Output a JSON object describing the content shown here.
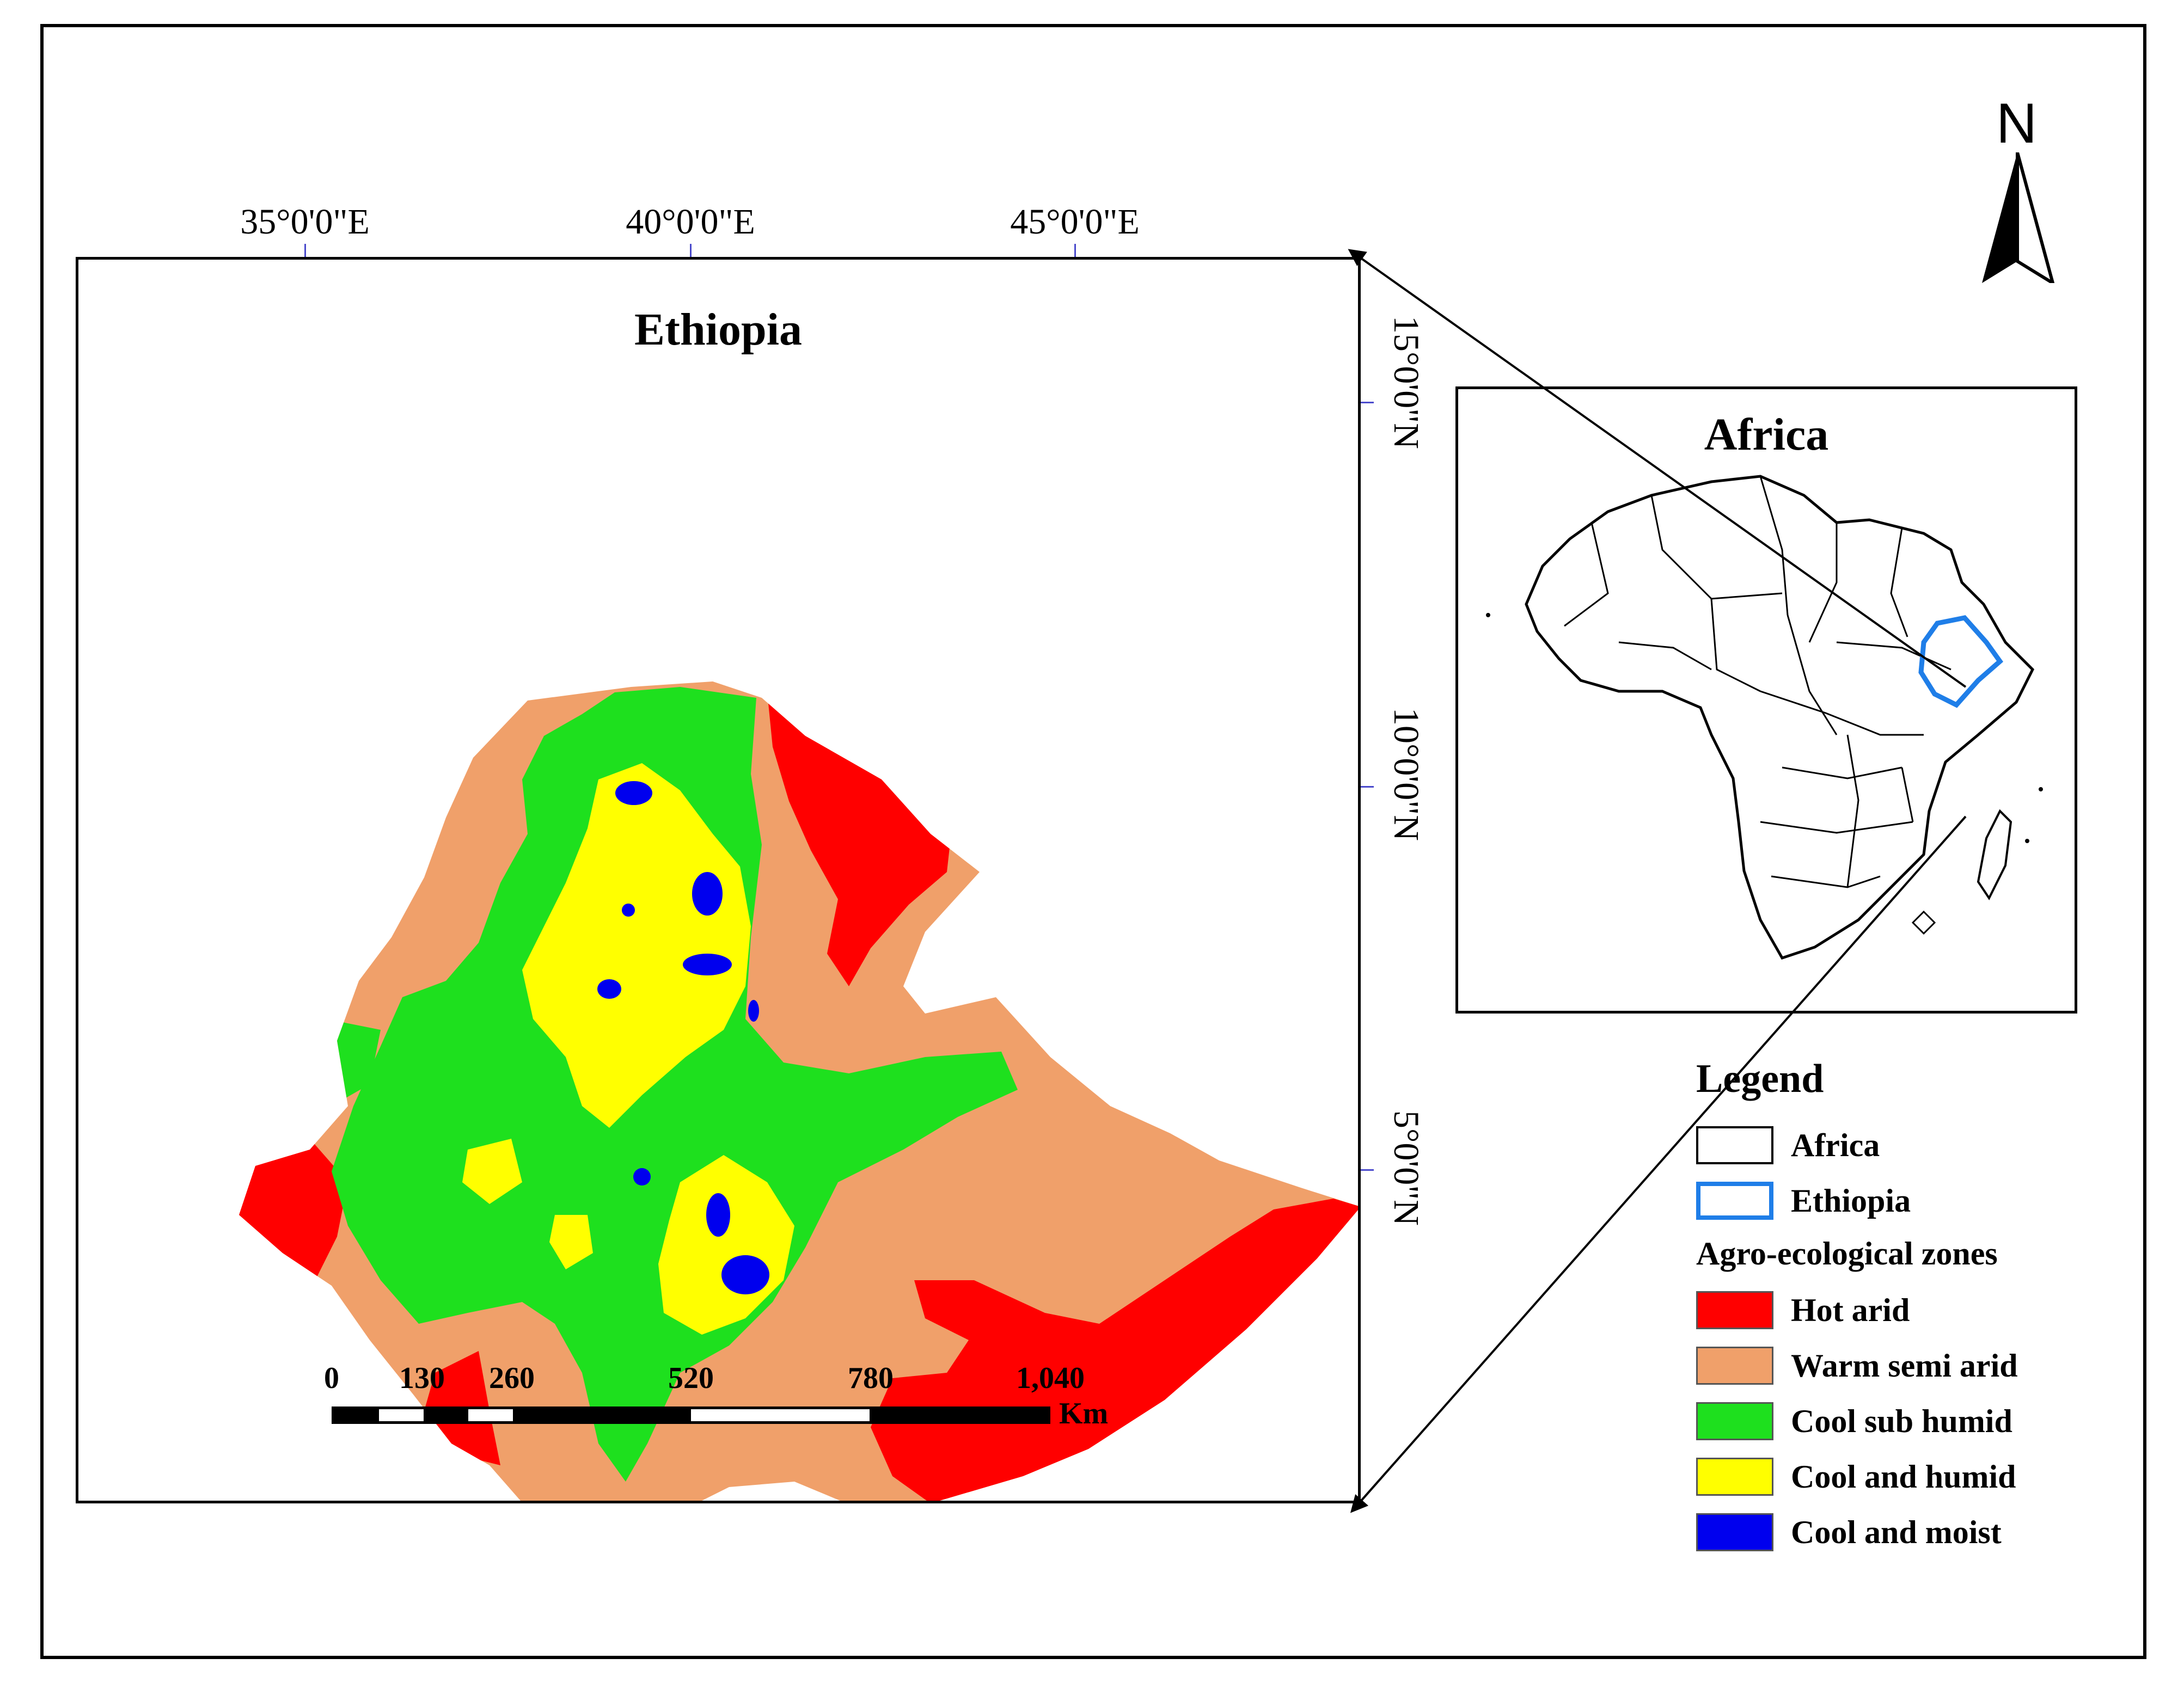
{
  "main_map": {
    "title": "Ethiopia",
    "longitude_labels": [
      "35°0'0\"E",
      "40°0'0\"E",
      "45°0'0\"E"
    ],
    "latitude_labels": [
      "15°0'0\"N",
      "10°0'0\"N",
      "5°0'0\"N"
    ]
  },
  "inset": {
    "title": "Africa"
  },
  "north_arrow": {
    "label": "N"
  },
  "scale_bar": {
    "ticks": [
      "0",
      "130",
      "260",
      "520",
      "780",
      "1,040"
    ],
    "unit": "Km"
  },
  "legend": {
    "title": "Legend",
    "boundary_items": [
      {
        "label": "Africa",
        "stroke": "#000000",
        "fill": "#ffffff"
      },
      {
        "label": "Ethiopia",
        "stroke": "#1f7ee8",
        "fill": "#ffffff"
      }
    ],
    "zones_title": "Agro-ecological zones",
    "zones": [
      {
        "label": "Hot arid",
        "color": "#ff0000"
      },
      {
        "label": "Warm semi arid",
        "color": "#f0a06a"
      },
      {
        "label": "Cool sub humid",
        "color": "#1ee01e"
      },
      {
        "label": "Cool and humid",
        "color": "#ffff00"
      },
      {
        "label": "Cool and moist",
        "color": "#0000ee"
      }
    ]
  }
}
